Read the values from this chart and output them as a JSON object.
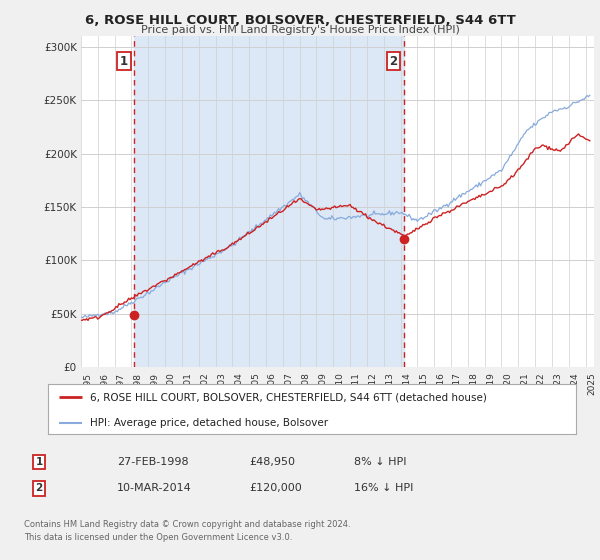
{
  "title": "6, ROSE HILL COURT, BOLSOVER, CHESTERFIELD, S44 6TT",
  "subtitle": "Price paid vs. HM Land Registry's House Price Index (HPI)",
  "ylim": [
    0,
    310000
  ],
  "xlim_start": 1995.0,
  "xlim_end": 2025.5,
  "yticks": [
    0,
    50000,
    100000,
    150000,
    200000,
    250000,
    300000
  ],
  "ytick_labels": [
    "£0",
    "£50K",
    "£100K",
    "£150K",
    "£200K",
    "£250K",
    "£300K"
  ],
  "background_color": "#f0f0f0",
  "plot_bg_color": "#ffffff",
  "shade_color": "#dce8f5",
  "sale1_date": 1998.163,
  "sale1_price": 48950,
  "sale2_date": 2014.19,
  "sale2_price": 120000,
  "hpi_line_color": "#88aadd",
  "price_line_color": "#cc2222",
  "sale_dot_color": "#cc2222",
  "legend_label1": "6, ROSE HILL COURT, BOLSOVER, CHESTERFIELD, S44 6TT (detached house)",
  "legend_label2": "HPI: Average price, detached house, Bolsover",
  "annotation1_date": "27-FEB-1998",
  "annotation1_price": "£48,950",
  "annotation1_hpi": "8% ↓ HPI",
  "annotation2_date": "10-MAR-2014",
  "annotation2_price": "£120,000",
  "annotation2_hpi": "16% ↓ HPI",
  "footer1": "Contains HM Land Registry data © Crown copyright and database right 2024.",
  "footer2": "This data is licensed under the Open Government Licence v3.0."
}
